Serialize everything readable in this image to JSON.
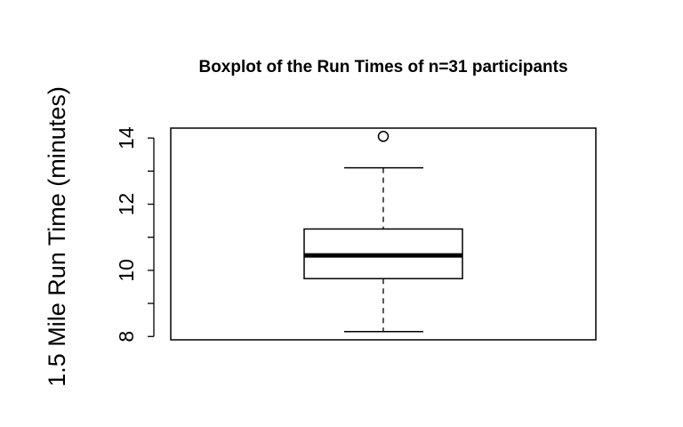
{
  "chart_data": {
    "type": "boxplot",
    "title": "Boxplot of the Run Times of n=31 participants",
    "xlabel": "",
    "ylabel": "1.5 Mile Run Time (minutes)",
    "ylim": [
      7.9,
      14.3
    ],
    "y_ticks": [
      8,
      9,
      10,
      11,
      12,
      13,
      14
    ],
    "y_tick_labels": [
      "8",
      "10",
      "12",
      "14"
    ],
    "box": {
      "whisker_low": 8.15,
      "q1": 9.75,
      "median": 10.45,
      "q3": 11.25,
      "whisker_high": 13.1,
      "outliers": [
        14.05
      ]
    },
    "grid": false
  }
}
